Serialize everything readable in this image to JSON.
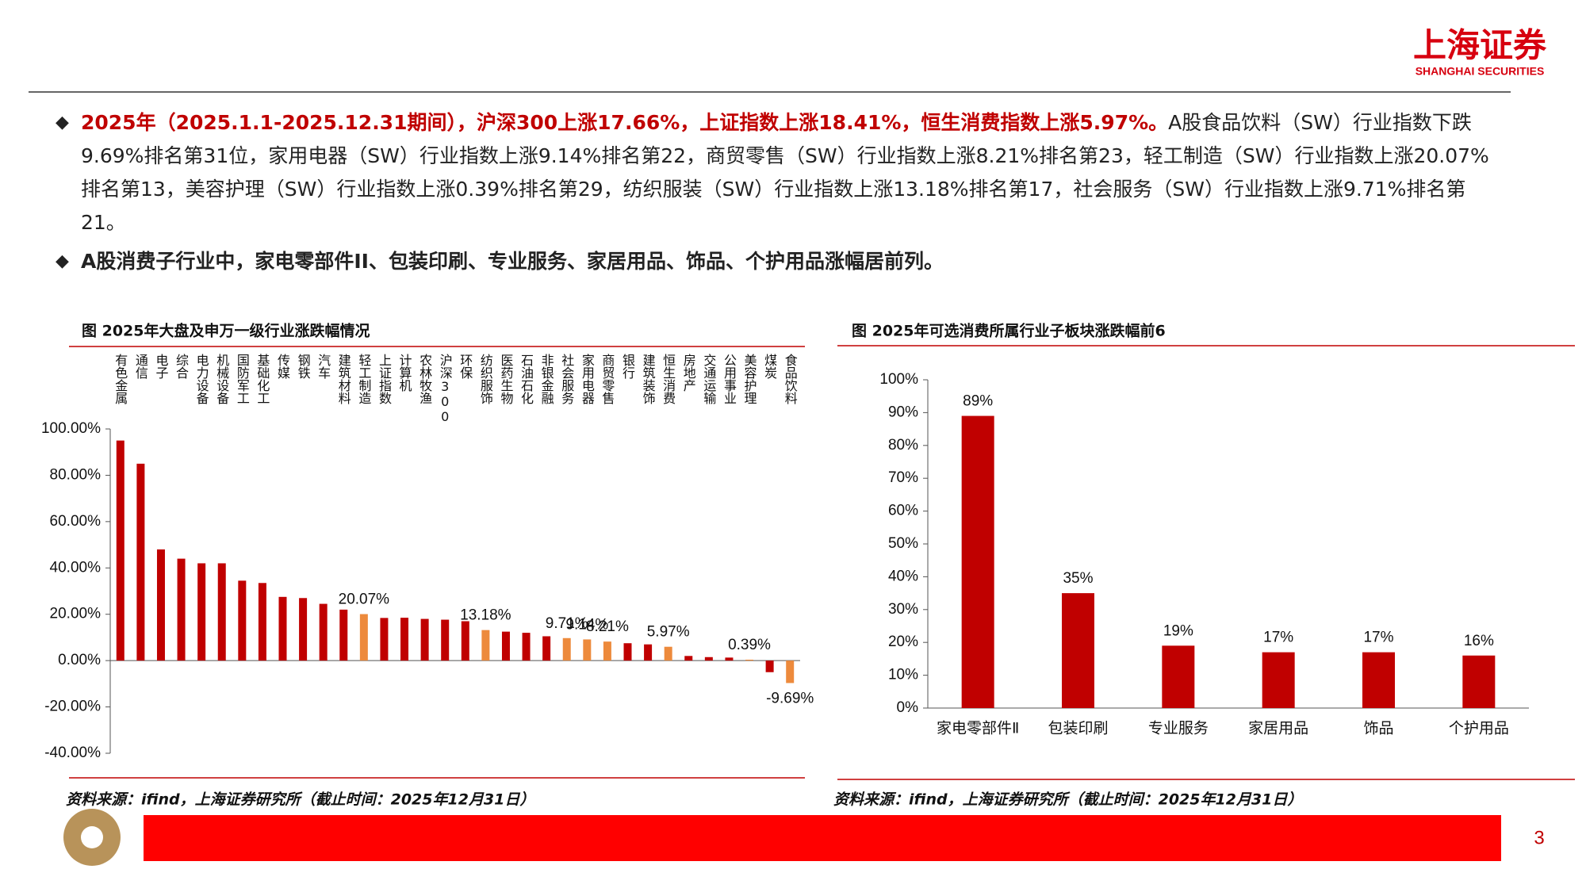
{
  "logo": {
    "name": "上海证券",
    "name_en": "SHANGHAI SECURITIES"
  },
  "bullets": [
    {
      "highlight": "2025年（2025.1.1-2025.12.31期间），沪深300上涨17.66%，上证指数上涨18.41%，恒生消费指数上涨5.97%。",
      "text": "A股食品饮料（SW）行业指数下跌9.69%排名第31位，家用电器（SW）行业指数上涨9.14%排名第22，商贸零售（SW）行业指数上涨8.21%排名第23，轻工制造（SW）行业指数上涨20.07%排名第13，美容护理（SW）行业指数上涨0.39%排名第29，纺织服装（SW）行业指数上涨13.18%排名第17，社会服务（SW）行业指数上涨9.71%排名第21。"
    },
    {
      "text": "A股消费子行业中，家电零部件II、包装印刷、专业服务、家居用品、饰品、个护用品涨幅居前列。"
    }
  ],
  "chart_data": [
    {
      "type": "bar",
      "title": "图 2025年大盘及申万一级行业涨跌幅情况",
      "categories": [
        "有色金属",
        "通信",
        "电子",
        "综合",
        "电力设备",
        "机械设备",
        "国防军工",
        "基础化工",
        "传媒",
        "钢铁",
        "汽车",
        "建筑材料",
        "轻工制造",
        "上证指数",
        "计算机",
        "农林牧渔",
        "沪深300",
        "环保",
        "纺织服饰",
        "医药生物",
        "石油石化",
        "非银金融",
        "社会服务",
        "家用电器",
        "商贸零售",
        "银行",
        "建筑装饰",
        "恒生消费",
        "房地产",
        "交通运输",
        "公用事业",
        "美容护理",
        "煤炭",
        "食品饮料"
      ],
      "values": [
        95,
        85,
        48,
        44,
        42,
        42,
        34.5,
        33.5,
        27.5,
        27,
        24.5,
        22,
        20.07,
        18.41,
        18.5,
        18,
        17.66,
        17,
        13.18,
        12.5,
        12,
        10.5,
        9.71,
        9.14,
        8.21,
        7.5,
        7,
        5.97,
        2,
        1.5,
        1.3,
        0.39,
        -5,
        -9.69
      ],
      "value_labels": [
        null,
        null,
        null,
        null,
        null,
        null,
        null,
        null,
        null,
        null,
        null,
        null,
        "20.07%",
        null,
        null,
        null,
        null,
        null,
        "13.18%",
        null,
        null,
        null,
        "9.71%",
        "9.14%",
        "8.21%",
        null,
        null,
        "5.97%",
        null,
        null,
        null,
        "0.39%",
        null,
        "-9.69%"
      ],
      "colors": [
        "#c00000",
        "#c00000",
        "#c00000",
        "#c00000",
        "#c00000",
        "#c00000",
        "#c00000",
        "#c00000",
        "#c00000",
        "#c00000",
        "#c00000",
        "#c00000",
        "#ed8a3c",
        "#c00000",
        "#c00000",
        "#c00000",
        "#c00000",
        "#c00000",
        "#ed8a3c",
        "#c00000",
        "#c00000",
        "#c00000",
        "#ed8a3c",
        "#ed8a3c",
        "#ed8a3c",
        "#c00000",
        "#c00000",
        "#ed8a3c",
        "#c00000",
        "#c00000",
        "#c00000",
        "#ed8a3c",
        "#c00000",
        "#ed8a3c"
      ],
      "ylim": [
        -40,
        100
      ],
      "yticks": [
        {
          "value": 100,
          "label": "100.00%"
        },
        {
          "value": 80,
          "label": "80.00%"
        },
        {
          "value": 60,
          "label": "60.00%"
        },
        {
          "value": 40,
          "label": "40.00%"
        },
        {
          "value": 20,
          "label": "20.00%"
        },
        {
          "value": 0,
          "label": "0.00%"
        },
        {
          "value": -20,
          "label": "-20.00%"
        },
        {
          "value": -40,
          "label": "-40.00%"
        }
      ],
      "source": "资料来源：ifind，上海证券研究所（截止时间：2025年12月31日）"
    },
    {
      "type": "bar",
      "title": "图 2025年可选消费所属行业子板块涨跌幅前6",
      "categories": [
        "家电零部件Ⅱ",
        "包装印刷",
        "专业服务",
        "家居用品",
        "饰品",
        "个护用品"
      ],
      "values": [
        89,
        35,
        19,
        17,
        17,
        16
      ],
      "value_labels": [
        "89%",
        "35%",
        "19%",
        "17%",
        "17%",
        "16%"
      ],
      "color": "#c00000",
      "ylim": [
        0,
        100
      ],
      "yticks": [
        {
          "value": 0,
          "label": "0%"
        },
        {
          "value": 10,
          "label": "10%"
        },
        {
          "value": 20,
          "label": "20%"
        },
        {
          "value": 30,
          "label": "30%"
        },
        {
          "value": 40,
          "label": "40%"
        },
        {
          "value": 50,
          "label": "50%"
        },
        {
          "value": 60,
          "label": "60%"
        },
        {
          "value": 70,
          "label": "70%"
        },
        {
          "value": 80,
          "label": "80%"
        },
        {
          "value": 90,
          "label": "90%"
        },
        {
          "value": 100,
          "label": "100%"
        }
      ],
      "source": "资料来源：ifind，上海证券研究所（截止时间：2025年12月31日）"
    }
  ],
  "page_number": "3"
}
